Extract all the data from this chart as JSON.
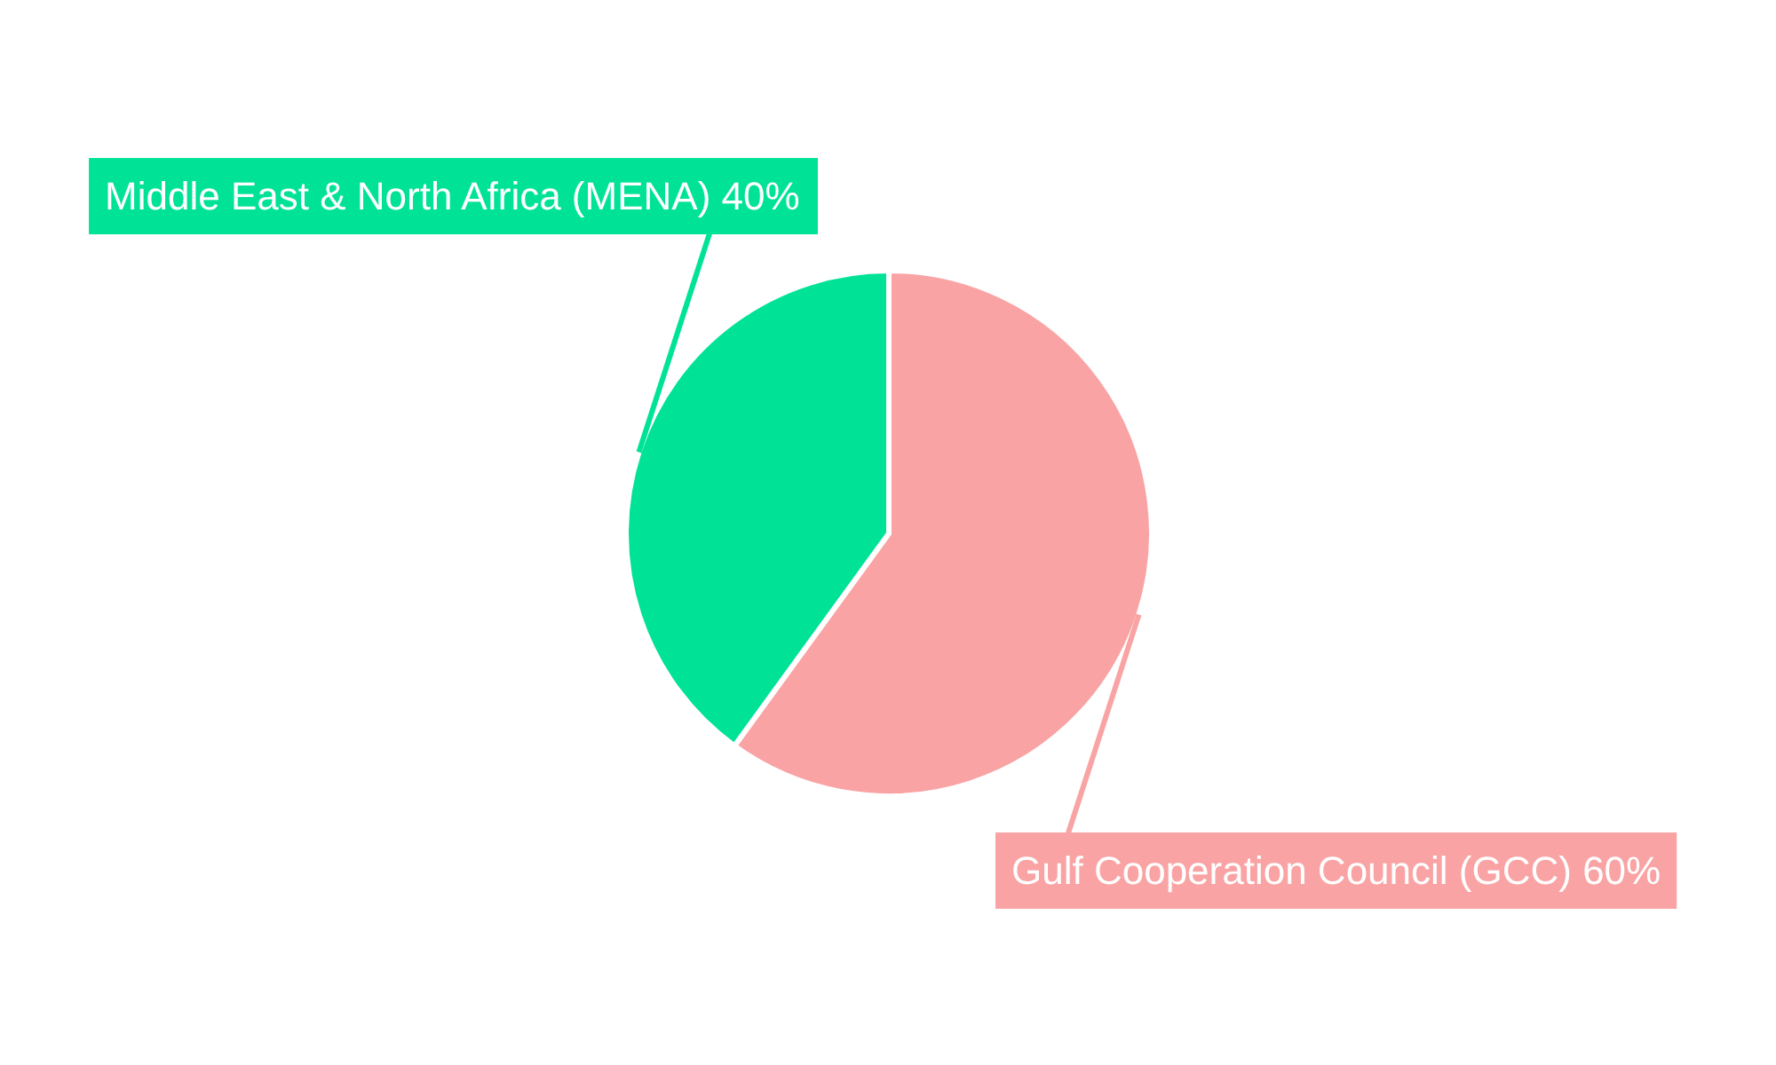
{
  "chart_data": {
    "type": "pie",
    "categories": [
      "Gulf Cooperation Council (GCC)",
      "Middle East & North Africa (MENA)"
    ],
    "values": [
      60,
      40
    ],
    "colors": [
      "#f9a3a4",
      "#00e396"
    ],
    "value_labels": [
      "60%",
      "40%"
    ]
  }
}
